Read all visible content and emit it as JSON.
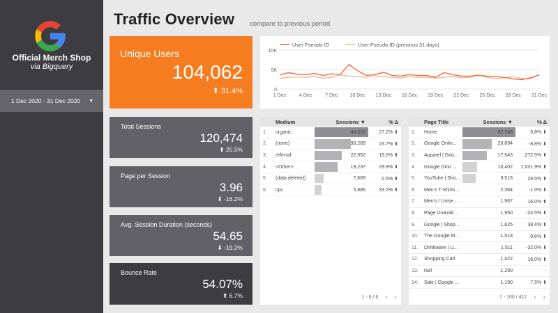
{
  "sidebar": {
    "brand_title": "Official Merch Shop",
    "brand_subtitle": "via Bigquery",
    "date_range": "1 Dec 2020 - 31 Dec 2020",
    "logo_icon": "google-g-icon",
    "colors": {
      "bg": "#3d3c41",
      "date_bg": "#65646a"
    }
  },
  "header": {
    "title": "Traffic Overview",
    "subtitle": "compare to previous period"
  },
  "unique_users": {
    "label": "Unique Users",
    "value": "104,062",
    "delta": "⬆ 31.4%",
    "color": "#f57c1f"
  },
  "kpis": {
    "total_sessions": {
      "label": "Total Sessions",
      "value": "120,474",
      "delta": "⬆ 25.5%"
    },
    "page_per_session": {
      "label": "Page per Session",
      "value": "3.96",
      "delta": "⬇ -16.2%"
    },
    "avg_session_duration": {
      "label": "Avg. Session Duration (seconds)",
      "value": "54.65",
      "delta": "⬇ -19.2%"
    },
    "bounce_rate": {
      "label": "Bounce Rate",
      "value": "54.07%",
      "delta": "⬆ 6.7%"
    }
  },
  "chart_data": {
    "type": "line",
    "title": "",
    "x": [
      "1 Dec",
      "2 Dec",
      "3 Dec",
      "4 Dec",
      "5 Dec",
      "6 Dec",
      "7 Dec",
      "8 Dec",
      "9 Dec",
      "10 Dec",
      "11 Dec",
      "12 Dec",
      "13 Dec",
      "14 Dec",
      "15 Dec",
      "16 Dec",
      "17 Dec",
      "18 Dec",
      "19 Dec",
      "20 Dec",
      "21 Dec",
      "22 Dec",
      "23 Dec",
      "24 Dec",
      "25 Dec",
      "26 Dec",
      "27 Dec",
      "28 Dec",
      "29 Dec",
      "30 Dec",
      "31 Dec"
    ],
    "x_tick_labels": [
      "1 Dec",
      "4 Dec",
      "7 Dec",
      "10 Dec",
      "13 Dec",
      "16 Dec",
      "19 Dec",
      "22 Dec",
      "25 Dec",
      "28 Dec",
      "31 Dec"
    ],
    "y_tick_labels": [
      "0",
      "5K",
      "10K"
    ],
    "ylim": [
      0,
      10000
    ],
    "series": [
      {
        "name": "User Pseudo ID",
        "color": "#f26b3a",
        "values": [
          3600,
          4200,
          3800,
          3700,
          4000,
          3500,
          3900,
          3700,
          6300,
          4700,
          3500,
          3700,
          4300,
          3500,
          3300,
          3700,
          3500,
          3500,
          3000,
          4200,
          3700,
          3300,
          3300,
          3500,
          3300,
          3200,
          3000,
          2600,
          2400,
          2900,
          3600
        ]
      },
      {
        "name": "User Pseudo ID (previous 31 days)",
        "color": "#f5b89a",
        "values": [
          2800,
          3000,
          3100,
          3000,
          3200,
          2800,
          3000,
          3600,
          3300,
          3200,
          3000,
          3400,
          3200,
          3000,
          2800,
          3200,
          3000,
          3000,
          2800,
          3000,
          3300,
          2900,
          3000,
          3600,
          3000,
          2700,
          2800,
          3200,
          2700,
          2600,
          3800
        ]
      }
    ]
  },
  "medium_table": {
    "headers": {
      "rank": "",
      "dim": "Medium",
      "metric": "Sessions ▼",
      "delta": "% Δ"
    },
    "rows": [
      {
        "rank": "1.",
        "name": "organic",
        "sessions": "44,828",
        "share": 1.0,
        "delta": "27.2% ⬆"
      },
      {
        "rank": "2.",
        "name": "(none)",
        "sessions": "30,289",
        "share": 0.676,
        "delta": "23.7% ⬆"
      },
      {
        "rank": "3.",
        "name": "referral",
        "sessions": "22,952",
        "share": 0.512,
        "delta": "19.5% ⬆"
      },
      {
        "rank": "4.",
        "name": "<Other>",
        "sessions": "19,237",
        "share": 0.429,
        "delta": "29.9% ⬆"
      },
      {
        "rank": "5.",
        "name": "(data deleted)",
        "sessions": "7,689",
        "share": 0.172,
        "delta": "0.5% ⬆"
      },
      {
        "rank": "6.",
        "name": "cpc",
        "sessions": "5,886",
        "share": 0.131,
        "delta": "33.2% ⬆"
      }
    ],
    "pagination": "1 - 6 / 6"
  },
  "page_table": {
    "headers": {
      "rank": "",
      "dim": "Page Title",
      "metric": "Sessions ▼",
      "delta": "% Δ"
    },
    "rows": [
      {
        "rank": "1.",
        "name": "Home",
        "sessions": "37,746",
        "share": 1.0,
        "delta": "5.8% ⬆"
      },
      {
        "rank": "2.",
        "name": "Google Onlin...",
        "sessions": "20,894",
        "share": 0.554,
        "delta": "-8.8% ⬇"
      },
      {
        "rank": "3.",
        "name": "Apparel | Goo...",
        "sessions": "17,543",
        "share": 0.465,
        "delta": "272.5% ⬆"
      },
      {
        "rank": "4.",
        "name": "Google Dino ...",
        "sessions": "10,402",
        "share": 0.276,
        "delta": "1,031.9% ⬆"
      },
      {
        "rank": "5.",
        "name": "YouTube | Sho...",
        "sessions": "9,516",
        "share": 0.252,
        "delta": "28.5% ⬆"
      },
      {
        "rank": "6.",
        "name": "Men's T-Shirts...",
        "sessions": "2,364",
        "share": 0.0,
        "delta": "-1.0% ⬇"
      },
      {
        "rank": "7.",
        "name": "Men's / Unise...",
        "sessions": "1,967",
        "share": 0.0,
        "delta": "16.0% ⬆"
      },
      {
        "rank": "8.",
        "name": "Page Unavail...",
        "sessions": "1,950",
        "share": 0.0,
        "delta": "-24.5% ⬇"
      },
      {
        "rank": "9.",
        "name": "Google | Shop...",
        "sessions": "1,625",
        "share": 0.0,
        "delta": "38.4% ⬆"
      },
      {
        "rank": "10.",
        "name": "The Google M...",
        "sessions": "1,518",
        "share": 0.0,
        "delta": "-9.6% ⬇"
      },
      {
        "rank": "11.",
        "name": "Drinkware | Li...",
        "sessions": "1,511",
        "share": 0.0,
        "delta": "-32.0% ⬇"
      },
      {
        "rank": "12.",
        "name": "Shopping Cart",
        "sessions": "1,422",
        "share": 0.0,
        "delta": "16.0% ⬆"
      },
      {
        "rank": "13.",
        "name": "null",
        "sessions": "1,290",
        "share": 0.0,
        "delta": "-"
      },
      {
        "rank": "14.",
        "name": "Sale | Google ...",
        "sessions": "1,190",
        "share": 0.0,
        "delta": "7.5% ⬆"
      }
    ],
    "pagination": "1 - 100 / 412"
  },
  "pager": {
    "prev": "‹",
    "next": "›"
  }
}
